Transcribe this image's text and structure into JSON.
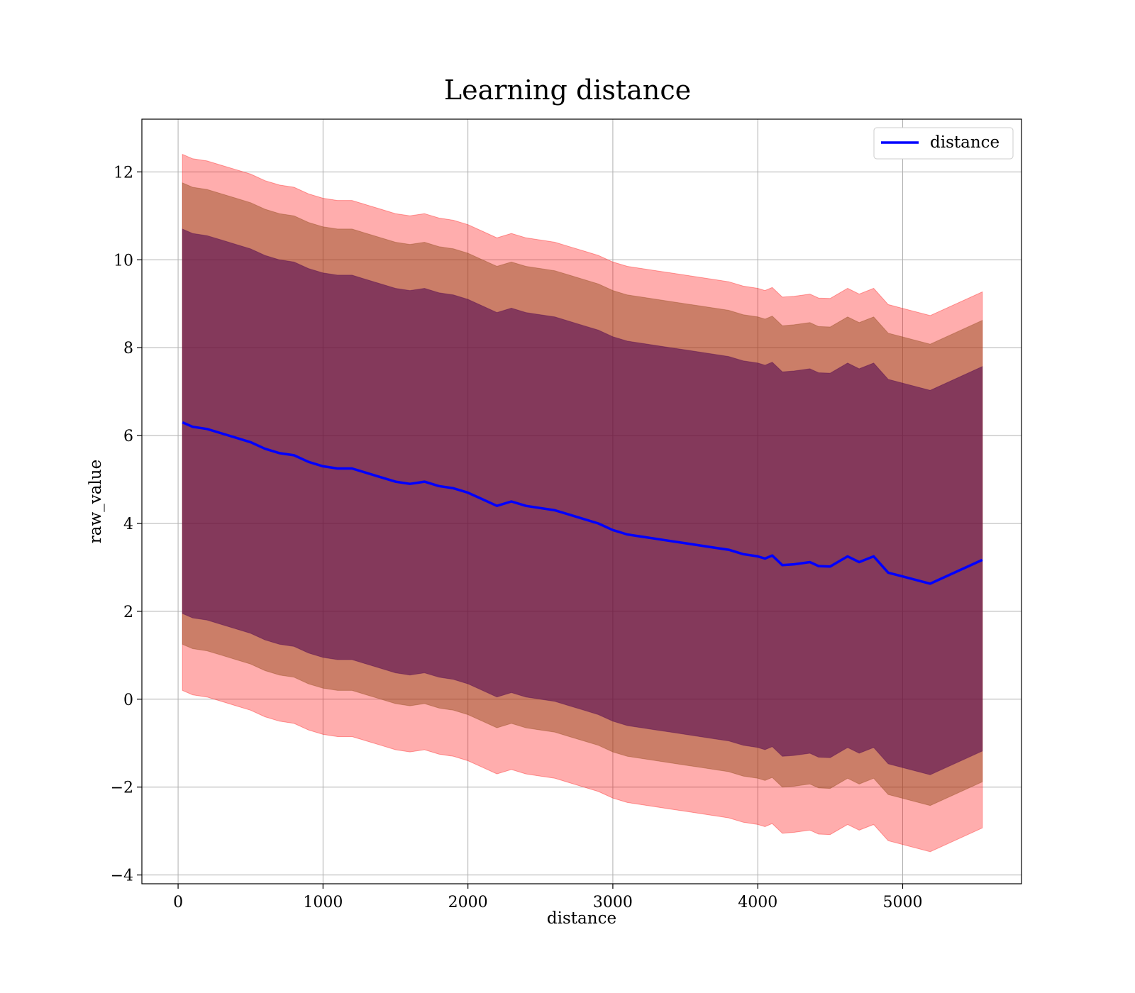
{
  "chart_data": {
    "type": "line",
    "title": "Learning distance",
    "xlabel": "distance",
    "ylabel": "raw_value",
    "xlim": [
      -250,
      5820
    ],
    "ylim": [
      -4.2,
      13.2
    ],
    "xticks": [
      0,
      1000,
      2000,
      3000,
      4000,
      5000
    ],
    "xtick_labels": [
      "0",
      "1000",
      "2000",
      "3000",
      "4000",
      "5000"
    ],
    "yticks": [
      -4,
      -2,
      0,
      2,
      4,
      6,
      8,
      10,
      12
    ],
    "ytick_labels": [
      "−4",
      "−2",
      "0",
      "2",
      "4",
      "6",
      "8",
      "10",
      "12"
    ],
    "grid": true,
    "legend": {
      "position": "top-right",
      "entries": [
        "distance"
      ]
    },
    "colors": {
      "line": "#0000ff",
      "band3": "#ff0000",
      "band2": "#8b4513",
      "band1": "#4b0050"
    },
    "band_opacity": {
      "band3": 0.32,
      "band2": 0.45,
      "band1": 0.55
    },
    "x": [
      30,
      100,
      200,
      300,
      400,
      500,
      600,
      700,
      800,
      900,
      1000,
      1100,
      1200,
      1300,
      1400,
      1500,
      1600,
      1700,
      1800,
      1900,
      2000,
      2100,
      2200,
      2300,
      2400,
      2500,
      2600,
      2700,
      2800,
      2900,
      3000,
      3100,
      3200,
      3300,
      3400,
      3500,
      3600,
      3700,
      3800,
      3900,
      4000,
      4050,
      4100,
      4170,
      4250,
      4360,
      4420,
      4500,
      4620,
      4700,
      4800,
      4900,
      5190,
      5550
    ],
    "series": [
      {
        "name": "distance",
        "values": [
          6.3,
          6.2,
          6.15,
          6.05,
          5.95,
          5.85,
          5.7,
          5.6,
          5.55,
          5.4,
          5.3,
          5.25,
          5.25,
          5.15,
          5.05,
          4.95,
          4.9,
          4.95,
          4.85,
          4.8,
          4.7,
          4.55,
          4.4,
          4.5,
          4.4,
          4.35,
          4.3,
          4.2,
          4.1,
          4.0,
          3.85,
          3.75,
          3.7,
          3.65,
          3.6,
          3.55,
          3.5,
          3.45,
          3.4,
          3.3,
          3.25,
          3.2,
          3.27,
          3.05,
          3.07,
          3.12,
          3.03,
          3.02,
          3.25,
          3.12,
          3.25,
          2.88,
          2.63,
          3.17
        ]
      }
    ],
    "bands": [
      {
        "level": 3,
        "offset_upper": 6.1,
        "offset_lower": 6.1
      },
      {
        "level": 2,
        "offset_upper": 5.45,
        "offset_lower": 5.05
      },
      {
        "level": 1,
        "offset_upper": 4.4,
        "offset_lower": 4.35
      }
    ]
  }
}
